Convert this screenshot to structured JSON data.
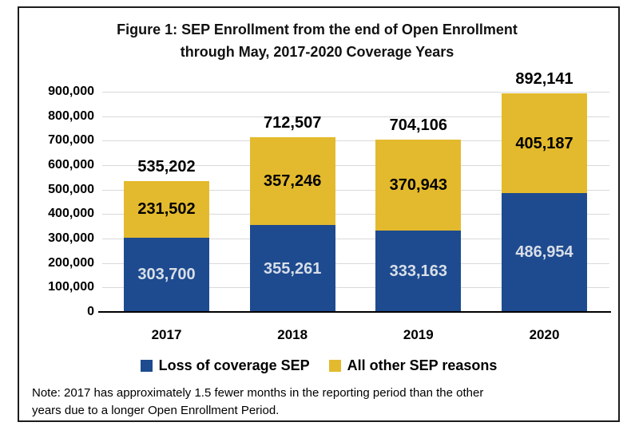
{
  "title": {
    "full": "Figure 1: SEP Enrollment from the end of Open Enrollment through May, 2017-2020 Coverage Years",
    "line1": "Figure 1: SEP Enrollment from the end of Open Enrollment",
    "line2": "through May, 2017-2020 Coverage Years"
  },
  "chart_data": {
    "type": "bar",
    "stacked": true,
    "title": "Figure 1: SEP Enrollment from the end of Open Enrollment through May, 2017-2020 Coverage Years",
    "categories": [
      "2017",
      "2018",
      "2019",
      "2020"
    ],
    "series": [
      {
        "name": "Loss of coverage SEP",
        "color": "#1e4b8f",
        "label_color": "#d8dee8",
        "values": [
          303700,
          355261,
          333163,
          486954
        ],
        "labels": [
          "303,700",
          "355,261",
          "333,163",
          "486,954"
        ]
      },
      {
        "name": "All other SEP reasons",
        "color": "#e3ba2d",
        "label_color": "#000000",
        "values": [
          231502,
          357246,
          370943,
          405187
        ],
        "labels": [
          "231,502",
          "357,246",
          "370,943",
          "405,187"
        ]
      }
    ],
    "totals": [
      535202,
      712507,
      704106,
      892141
    ],
    "total_labels": [
      "535,202",
      "712,507",
      "704,106",
      "892,141"
    ],
    "xlabel": "",
    "ylabel": "",
    "ylim": [
      0,
      900000
    ],
    "ytick_step": 100000,
    "ytick_labels": [
      "0",
      "100,000",
      "200,000",
      "300,000",
      "400,000",
      "500,000",
      "600,000",
      "700,000",
      "800,000",
      "900,000"
    ],
    "grid": true,
    "gridline_color": "#d9d9d9",
    "legend_position": "bottom"
  },
  "note": {
    "line1": "Note: 2017 has approximately 1.5 fewer months in the reporting period than the other",
    "line2": "years due to a longer Open Enrollment Period."
  }
}
